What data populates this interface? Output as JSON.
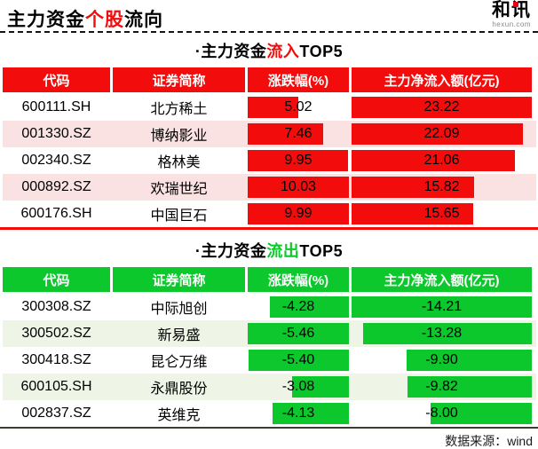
{
  "header": {
    "title": {
      "part1": "主力资金",
      "part2": "个股",
      "part3": "流向"
    },
    "logo": {
      "name": "和讯",
      "domain": "hexun.com"
    }
  },
  "inflow": {
    "title": {
      "prefix": "·主力资金",
      "highlight": "流入",
      "suffix": "TOP5"
    },
    "columns": [
      "代码",
      "证券简称",
      "涨跌幅(%)",
      "主力净流入额(亿元)"
    ],
    "accent_color": "#f30c0c",
    "stripe_color": "#fbe2e2",
    "bar_side": "left",
    "change_max": 10.03,
    "net_max": 23.22,
    "rows": [
      {
        "code": "600111.SH",
        "name": "北方稀土",
        "change": "5.02",
        "net": "23.22"
      },
      {
        "code": "001330.SZ",
        "name": "博纳影业",
        "change": "7.46",
        "net": "22.09"
      },
      {
        "code": "002340.SZ",
        "name": "格林美",
        "change": "9.95",
        "net": "21.06"
      },
      {
        "code": "000892.SZ",
        "name": "欢瑞世纪",
        "change": "10.03",
        "net": "15.82"
      },
      {
        "code": "600176.SH",
        "name": "中国巨石",
        "change": "9.99",
        "net": "15.65"
      }
    ]
  },
  "outflow": {
    "title": {
      "prefix": "·主力资金",
      "highlight": "流出",
      "suffix": "TOP5"
    },
    "columns": [
      "代码",
      "证券简称",
      "涨跌幅(%)",
      "主力净流入额(亿元)"
    ],
    "accent_color": "#0cc82c",
    "stripe_color": "#eef4e6",
    "bar_side": "right",
    "change_max": 5.46,
    "net_max": 14.21,
    "rows": [
      {
        "code": "300308.SZ",
        "name": "中际旭创",
        "change": "-4.28",
        "net": "-14.21"
      },
      {
        "code": "300502.SZ",
        "name": "新易盛",
        "change": "-5.46",
        "net": "-13.28"
      },
      {
        "code": "300418.SZ",
        "name": "昆仑万维",
        "change": "-5.40",
        "net": "-9.90"
      },
      {
        "code": "600105.SH",
        "name": "永鼎股份",
        "change": "-3.08",
        "net": "-9.82"
      },
      {
        "code": "002837.SZ",
        "name": "英维克",
        "change": "-4.13",
        "net": "-8.00"
      }
    ]
  },
  "footer": {
    "source": "数据来源：wind"
  },
  "chart_data": [
    {
      "type": "table",
      "title": "主力资金流入TOP5",
      "columns": [
        "代码",
        "证券简称",
        "涨跌幅(%)",
        "主力净流入额(亿元)"
      ],
      "rows": [
        [
          "600111.SH",
          "北方稀土",
          5.02,
          23.22
        ],
        [
          "001330.SZ",
          "博纳影业",
          7.46,
          22.09
        ],
        [
          "002340.SZ",
          "格林美",
          9.95,
          21.06
        ],
        [
          "000892.SZ",
          "欢瑞世纪",
          10.03,
          15.82
        ],
        [
          "600176.SH",
          "中国巨石",
          9.99,
          15.65
        ]
      ],
      "bar_color": "#f30c0c",
      "bar_columns": [
        "涨跌幅(%)",
        "主力净流入额(亿元)"
      ]
    },
    {
      "type": "table",
      "title": "主力资金流出TOP5",
      "columns": [
        "代码",
        "证券简称",
        "涨跌幅(%)",
        "主力净流入额(亿元)"
      ],
      "rows": [
        [
          "300308.SZ",
          "中际旭创",
          -4.28,
          -14.21
        ],
        [
          "300502.SZ",
          "新易盛",
          -5.46,
          -13.28
        ],
        [
          "300418.SZ",
          "昆仑万维",
          -5.4,
          -9.9
        ],
        [
          "600105.SH",
          "永鼎股份",
          -3.08,
          -9.82
        ],
        [
          "002837.SZ",
          "英维克",
          -4.13,
          -8.0
        ]
      ],
      "bar_color": "#0cc82c",
      "bar_columns": [
        "涨跌幅(%)",
        "主力净流入额(亿元)"
      ]
    }
  ]
}
